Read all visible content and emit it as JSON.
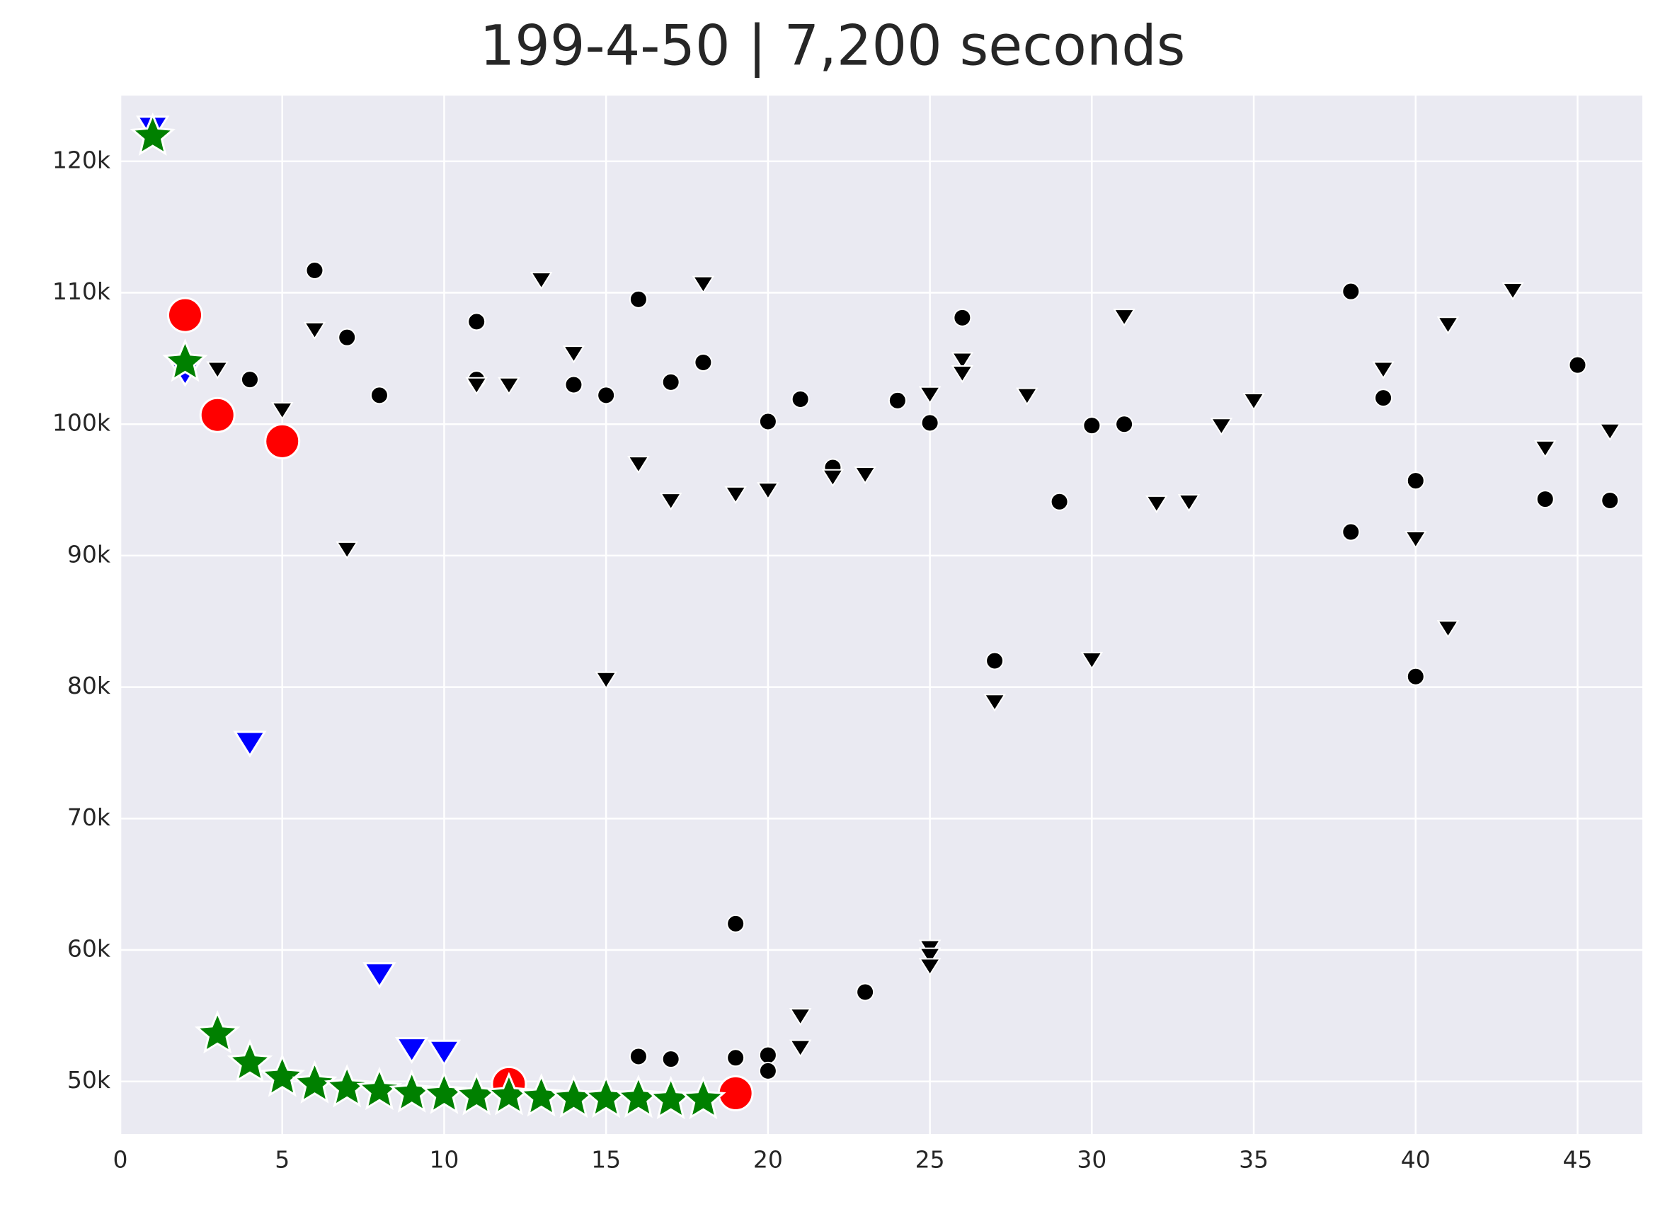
{
  "chart_data": {
    "type": "scatter",
    "title": "199-4-50 | 7,200 seconds",
    "xlim": [
      0,
      47
    ],
    "ylim": [
      46000,
      125000
    ],
    "xticks": [
      0,
      5,
      10,
      15,
      20,
      25,
      30,
      35,
      40,
      45
    ],
    "yticks": [
      {
        "value": 50000,
        "label": "50k"
      },
      {
        "value": 60000,
        "label": "60k"
      },
      {
        "value": 70000,
        "label": "70k"
      },
      {
        "value": 80000,
        "label": "80k"
      },
      {
        "value": 90000,
        "label": "90k"
      },
      {
        "value": 100000,
        "label": "100k"
      },
      {
        "value": 110000,
        "label": "110k"
      },
      {
        "value": 120000,
        "label": "120k"
      }
    ],
    "grid": true,
    "series": [
      {
        "color": "#000000",
        "marker": "circle",
        "size": "small",
        "x": [
          4,
          6,
          7,
          8,
          11,
          11,
          14,
          15,
          16,
          17,
          18,
          20,
          21,
          22,
          24,
          25,
          26,
          27,
          29,
          30,
          31,
          38,
          38,
          39,
          40,
          40,
          44,
          45,
          46,
          19,
          16,
          17,
          19,
          20,
          20,
          23
        ],
        "values": [
          103400,
          111700,
          106600,
          102200,
          107800,
          103400,
          103000,
          102200,
          109500,
          103200,
          104700,
          100200,
          101900,
          96700,
          101800,
          100100,
          108100,
          82000,
          94100,
          99900,
          100000,
          110100,
          91800,
          102000,
          95700,
          80800,
          94300,
          104500,
          94200,
          62000,
          51900,
          51700,
          51800,
          52000,
          50800,
          56800
        ]
      },
      {
        "color": "#000000",
        "marker": "triangle",
        "size": "small",
        "x": [
          3,
          5,
          6,
          7,
          11,
          12,
          13,
          14,
          15,
          16,
          17,
          18,
          19,
          20,
          21,
          21,
          22,
          23,
          25,
          25,
          25,
          25,
          26,
          26,
          27,
          28,
          30,
          31,
          32,
          33,
          34,
          35,
          39,
          40,
          41,
          41,
          43,
          44,
          46
        ],
        "values": [
          104200,
          101100,
          107200,
          90500,
          103000,
          103000,
          111000,
          105400,
          80600,
          97000,
          94200,
          110700,
          94700,
          95000,
          52600,
          55000,
          96000,
          96200,
          102300,
          60200,
          59600,
          58800,
          104900,
          103900,
          78900,
          102200,
          82100,
          108200,
          94000,
          94100,
          99900,
          101800,
          104200,
          91300,
          107600,
          84500,
          110200,
          98200,
          99500
        ]
      },
      {
        "color": "#ff0000",
        "marker": "circle",
        "size": "large",
        "x": [
          2,
          3,
          5,
          12,
          19
        ],
        "values": [
          108300,
          100700,
          98700,
          49800,
          49100
        ]
      },
      {
        "color": "#0000ff",
        "marker": "triangle",
        "size": "large",
        "x": [
          1,
          2,
          4,
          8,
          9,
          10
        ],
        "values": [
          122600,
          104000,
          75800,
          58200,
          52500,
          52300
        ]
      },
      {
        "color": "#008000",
        "marker": "star",
        "size": "large",
        "x": [
          1,
          2,
          3,
          4,
          5,
          6,
          7,
          8,
          9,
          10,
          11,
          12,
          13,
          14,
          15,
          16,
          17,
          18
        ],
        "values": [
          121900,
          104700,
          53600,
          51400,
          50300,
          49800,
          49500,
          49300,
          49100,
          49000,
          48900,
          48900,
          48800,
          48700,
          48700,
          48700,
          48600,
          48600
        ]
      }
    ]
  }
}
